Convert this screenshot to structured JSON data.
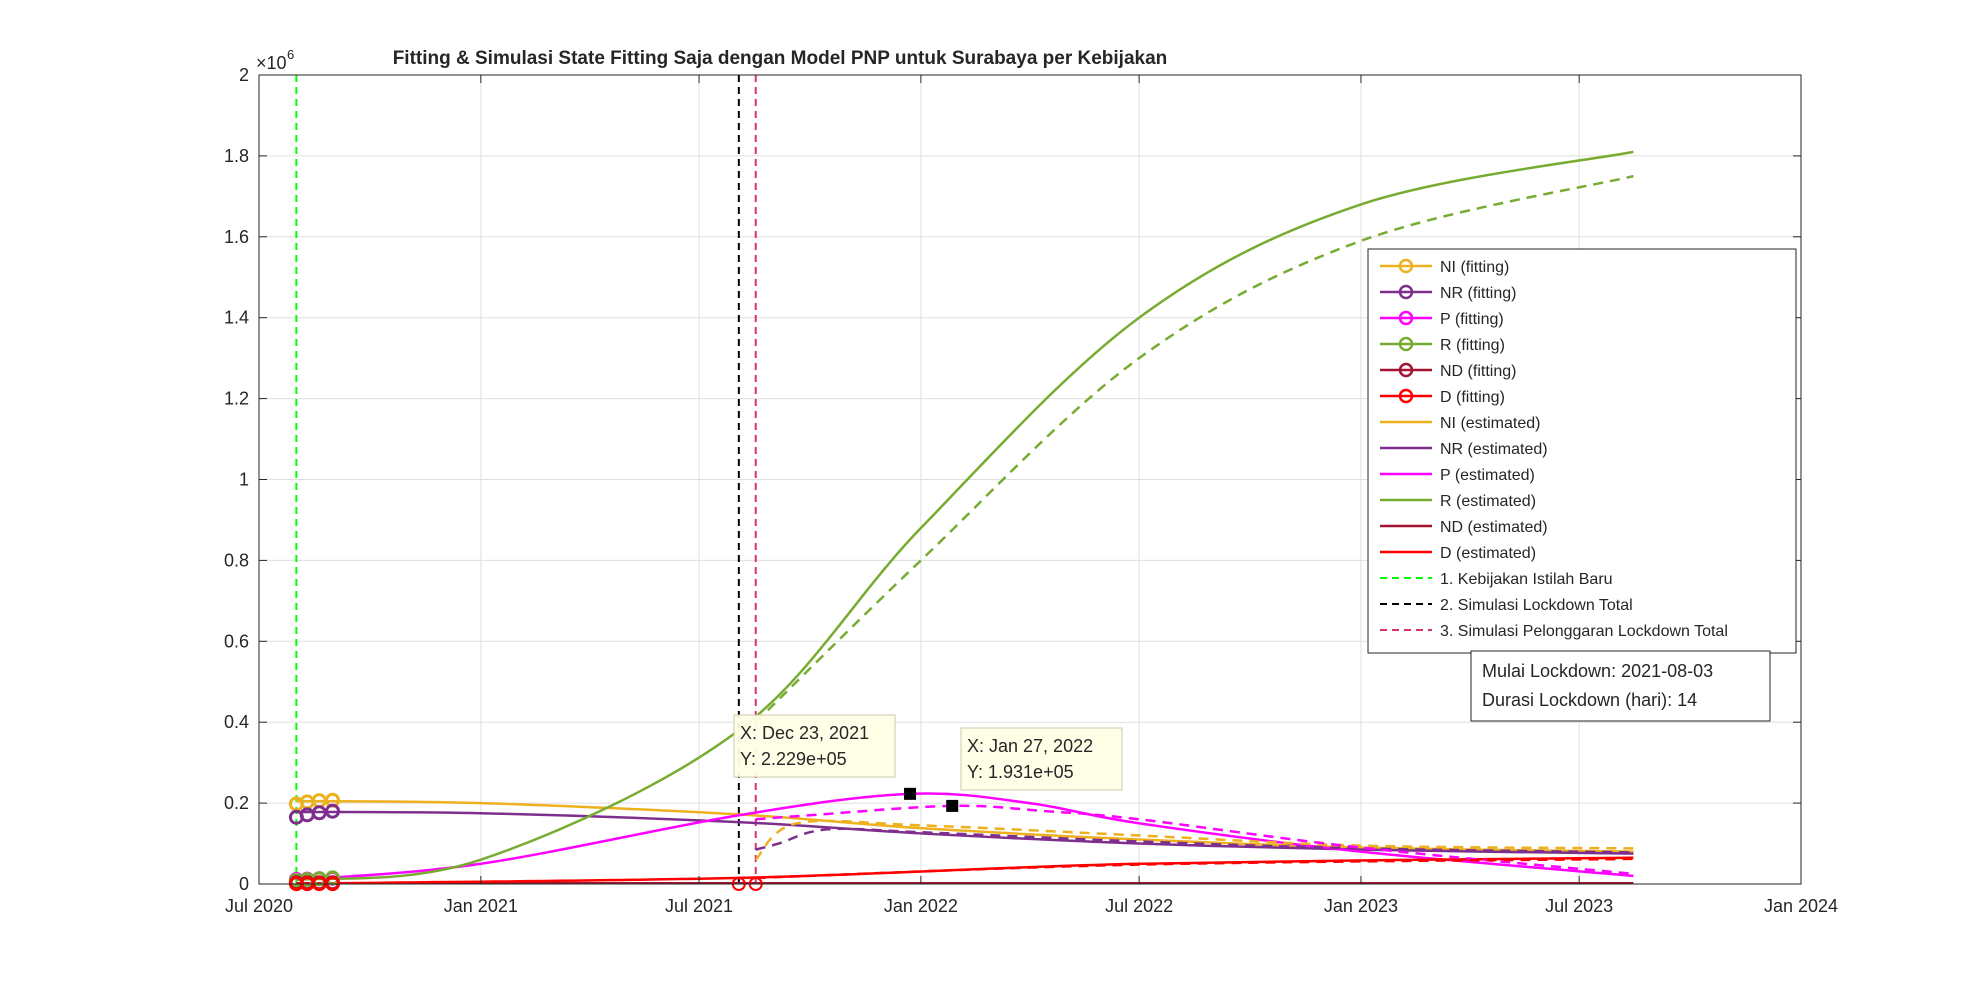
{
  "chart_data": {
    "type": "line",
    "title": "Fitting & Simulasi State Fitting Saja dengan Model PNP untuk Surabaya per Kebijakan",
    "xlabel": "",
    "ylabel": "",
    "y_exponent_label": "×10",
    "y_exponent_power": "6",
    "xlim": [
      "2020-07-01",
      "2024-01-01"
    ],
    "ylim": [
      0,
      2
    ],
    "x_ticks": [
      {
        "date": "2020-07-01",
        "label": "Jul 2020"
      },
      {
        "date": "2021-01-01",
        "label": "Jan 2021"
      },
      {
        "date": "2021-07-01",
        "label": "Jul 2021"
      },
      {
        "date": "2022-01-01",
        "label": "Jan 2022"
      },
      {
        "date": "2022-07-01",
        "label": "Jul 2022"
      },
      {
        "date": "2023-01-01",
        "label": "Jan 2023"
      },
      {
        "date": "2023-07-01",
        "label": "Jul 2023"
      },
      {
        "date": "2024-01-01",
        "label": "Jan 2024"
      }
    ],
    "y_ticks": [
      {
        "value": 0,
        "label": "0"
      },
      {
        "value": 0.2,
        "label": "0.2"
      },
      {
        "value": 0.4,
        "label": "0.4"
      },
      {
        "value": 0.6,
        "label": "0.6"
      },
      {
        "value": 0.8,
        "label": "0.8"
      },
      {
        "value": 1,
        "label": "1"
      },
      {
        "value": 1.2,
        "label": "1.2"
      },
      {
        "value": 1.4,
        "label": "1.4"
      },
      {
        "value": 1.6,
        "label": "1.6"
      },
      {
        "value": 1.8,
        "label": "1.8"
      },
      {
        "value": 2,
        "label": "2"
      }
    ],
    "grid": true,
    "legend_position": "right, upper-middle",
    "series": [
      {
        "name": "NI (fitting)",
        "color": "#EDB120",
        "style": "marker",
        "x": [
          "2020-08-01",
          "2020-08-10",
          "2020-08-20",
          "2020-08-31"
        ],
        "y": [
          0.198,
          0.203,
          0.206,
          0.207
        ]
      },
      {
        "name": "NR (fitting)",
        "color": "#7E2F8E",
        "style": "marker",
        "x": [
          "2020-08-01",
          "2020-08-10",
          "2020-08-20",
          "2020-08-31"
        ],
        "y": [
          0.165,
          0.171,
          0.176,
          0.18
        ]
      },
      {
        "name": "P (fitting)",
        "color": "#FF00FF",
        "style": "marker",
        "x": [
          "2020-08-01",
          "2020-08-10",
          "2020-08-20",
          "2020-08-31"
        ],
        "y": [
          0.011,
          0.012,
          0.013,
          0.014
        ]
      },
      {
        "name": "R (fitting)",
        "color": "#77AC30",
        "style": "marker",
        "x": [
          "2020-08-01",
          "2020-08-10",
          "2020-08-20",
          "2020-08-31"
        ],
        "y": [
          0.009,
          0.011,
          0.013,
          0.015
        ]
      },
      {
        "name": "ND (fitting)",
        "color": "#A2142F",
        "style": "marker",
        "x": [
          "2020-08-01",
          "2020-08-10",
          "2020-08-20",
          "2020-08-31"
        ],
        "y": [
          0.003,
          0.003,
          0.003,
          0.003
        ]
      },
      {
        "name": "D (fitting)",
        "color": "#FF0000",
        "style": "marker",
        "x": [
          "2020-08-01",
          "2020-08-10",
          "2020-08-20",
          "2020-08-31"
        ],
        "y": [
          0.001,
          0.001,
          0.001,
          0.001
        ]
      },
      {
        "name": "NI (estimated)",
        "color": "#EDB120",
        "style": "solid",
        "x": [
          "2020-08-01",
          "2021-01-01",
          "2021-08-03",
          "2022-01-01",
          "2022-07-01",
          "2023-01-01",
          "2023-08-15"
        ],
        "y": [
          0.205,
          0.2,
          0.172,
          0.138,
          0.11,
          0.09,
          0.08
        ]
      },
      {
        "name": "NR (estimated)",
        "color": "#7E2F8E",
        "style": "solid",
        "x": [
          "2020-08-01",
          "2021-01-01",
          "2021-08-03",
          "2022-01-01",
          "2022-07-01",
          "2023-01-01",
          "2023-08-15"
        ],
        "y": [
          0.178,
          0.175,
          0.153,
          0.125,
          0.1,
          0.085,
          0.075
        ]
      },
      {
        "name": "P (estimated)",
        "color": "#FF00FF",
        "style": "solid",
        "x": [
          "2020-08-01",
          "2021-01-01",
          "2021-08-03",
          "2021-12-23",
          "2022-04-01",
          "2022-07-01",
          "2023-01-01",
          "2023-08-15"
        ],
        "y": [
          0.01,
          0.05,
          0.17,
          0.2229,
          0.2,
          0.15,
          0.08,
          0.02
        ]
      },
      {
        "name": "R (estimated)",
        "color": "#77AC30",
        "style": "solid",
        "x": [
          "2020-08-01",
          "2021-01-01",
          "2021-08-03",
          "2022-01-01",
          "2022-07-01",
          "2023-01-01",
          "2023-08-15"
        ],
        "y": [
          0.01,
          0.06,
          0.38,
          0.88,
          1.4,
          1.68,
          1.81
        ]
      },
      {
        "name": "ND (estimated)",
        "color": "#A2142F",
        "style": "solid",
        "x": [
          "2020-08-01",
          "2023-08-15"
        ],
        "y": [
          0.002,
          0.002
        ]
      },
      {
        "name": "D (estimated)",
        "color": "#FF0000",
        "style": "solid",
        "x": [
          "2020-08-01",
          "2021-08-03",
          "2022-07-01",
          "2023-08-15"
        ],
        "y": [
          0.001,
          0.015,
          0.05,
          0.065
        ]
      },
      {
        "name": "1. Kebijakan Istilah Baru",
        "color": "#00FF00",
        "style": "vline",
        "x": [
          "2020-08-01"
        ]
      },
      {
        "name": "2. Simulasi Lockdown Total",
        "color": "#000000",
        "style": "vline",
        "x": [
          "2021-08-03"
        ]
      },
      {
        "name": "3. Simulasi Pelonggaran Lockdown Total",
        "color": "#D6336C",
        "style": "vline",
        "x": [
          "2021-08-17"
        ]
      }
    ],
    "simulation_series": [
      {
        "color": "#EDB120",
        "style": "dashed",
        "x": [
          "2021-08-17",
          "2021-09-20",
          "2022-01-01",
          "2022-07-01",
          "2023-01-01",
          "2023-08-15"
        ],
        "y": [
          0.06,
          0.15,
          0.145,
          0.12,
          0.095,
          0.088
        ]
      },
      {
        "color": "#7E2F8E",
        "style": "dashed",
        "x": [
          "2021-08-17",
          "2021-09-05",
          "2021-10-15",
          "2022-01-01",
          "2022-07-01",
          "2023-01-01",
          "2023-08-15"
        ],
        "y": [
          0.085,
          0.1,
          0.135,
          0.128,
          0.105,
          0.088,
          0.078
        ]
      },
      {
        "color": "#FF00FF",
        "style": "dashed",
        "x": [
          "2021-08-17",
          "2021-10-01",
          "2022-01-27",
          "2022-04-15",
          "2022-07-01",
          "2023-01-01",
          "2023-08-15"
        ],
        "y": [
          0.16,
          0.17,
          0.1931,
          0.18,
          0.16,
          0.09,
          0.025
        ]
      },
      {
        "color": "#77AC30",
        "style": "dashed",
        "x": [
          "2021-08-17",
          "2022-01-01",
          "2022-07-01",
          "2023-01-01",
          "2023-08-15"
        ],
        "y": [
          0.4,
          0.8,
          1.3,
          1.59,
          1.75
        ]
      },
      {
        "color": "#FF0000",
        "style": "dashed",
        "x": [
          "2021-08-17",
          "2022-07-01",
          "2023-08-15"
        ],
        "y": [
          0.015,
          0.048,
          0.062
        ]
      }
    ],
    "datatips": [
      {
        "x": "2021-12-23",
        "y": 0.2229,
        "x_text": "X: Dec 23, 2021",
        "y_text": "Y: 2.229e+05"
      },
      {
        "x": "2022-01-27",
        "y": 0.1931,
        "x_text": "X: Jan 27, 2022",
        "y_text": "Y: 1.931e+05"
      }
    ],
    "lockdown_markers": [
      {
        "x": "2021-08-03",
        "y": 0,
        "color": "#FF0000"
      },
      {
        "x": "2021-08-17",
        "y": 0,
        "color": "#FF0000"
      }
    ],
    "annotation": {
      "line1": "Mulai Lockdown: 2021-08-03",
      "line2": "Durasi Lockdown (hari): 14"
    }
  }
}
